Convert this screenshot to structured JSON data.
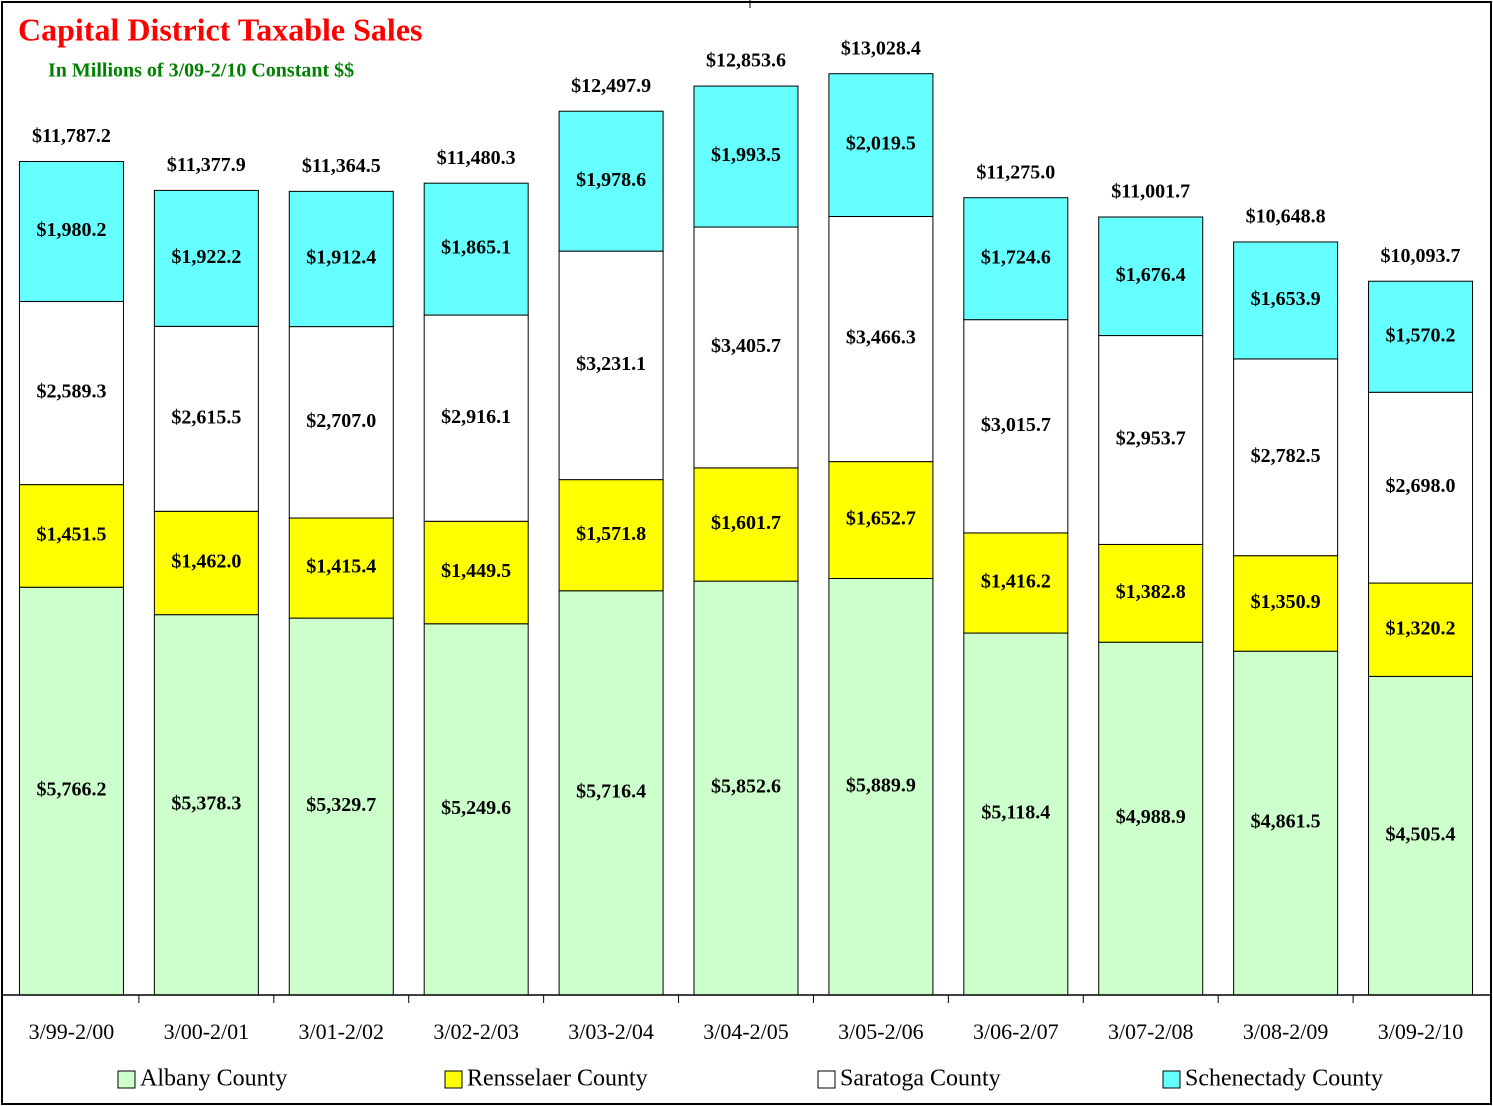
{
  "chart_data": {
    "type": "stacked_bar",
    "title": "Capital District Taxable Sales",
    "subtitle": "In Millions of 3/09-2/10 Constant $$",
    "categories": [
      "3/99-2/00",
      "3/00-2/01",
      "3/01-2/02",
      "3/02-2/03",
      "3/03-2/04",
      "3/04-2/05",
      "3/05-2/06",
      "3/06-2/07",
      "3/07-2/08",
      "3/08-2/09",
      "3/09-2/10"
    ],
    "ylim": [
      0,
      14000
    ],
    "series": [
      {
        "name": "Albany County",
        "color": "#ccffcc",
        "values": [
          5766.2,
          5378.3,
          5329.7,
          5249.6,
          5716.4,
          5852.6,
          5889.9,
          5118.4,
          4988.9,
          4861.5,
          4505.4
        ],
        "value_labels": [
          "$5,766.2",
          "$5,378.3",
          "$5,329.7",
          "$5,249.6",
          "$5,716.4",
          "$5,852.6",
          "$5,889.9",
          "$5,118.4",
          "$4,988.9",
          "$4,861.5",
          "$4,505.4"
        ]
      },
      {
        "name": "Rensselaer County",
        "color": "#ffff00",
        "values": [
          1451.5,
          1462.0,
          1415.4,
          1449.5,
          1571.8,
          1601.7,
          1652.7,
          1416.2,
          1382.8,
          1350.9,
          1320.2
        ],
        "value_labels": [
          "$1,451.5",
          "$1,462.0",
          "$1,415.4",
          "$1,449.5",
          "$1,571.8",
          "$1,601.7",
          "$1,652.7",
          "$1,416.2",
          "$1,382.8",
          "$1,350.9",
          "$1,320.2"
        ]
      },
      {
        "name": "Saratoga County",
        "color": "#ffffff",
        "values": [
          2589.3,
          2615.5,
          2707.0,
          2916.1,
          3231.1,
          3405.7,
          3466.3,
          3015.7,
          2953.7,
          2782.5,
          2698.0
        ],
        "value_labels": [
          "$2,589.3",
          "$2,615.5",
          "$2,707.0",
          "$2,916.1",
          "$3,231.1",
          "$3,405.7",
          "$3,466.3",
          "$3,015.7",
          "$2,953.7",
          "$2,782.5",
          "$2,698.0"
        ]
      },
      {
        "name": "Schenectady County",
        "color": "#66ffff",
        "values": [
          1980.2,
          1922.2,
          1912.4,
          1865.1,
          1978.6,
          1993.5,
          2019.5,
          1724.6,
          1676.4,
          1653.9,
          1570.2
        ],
        "value_labels": [
          "$1,980.2",
          "$1,922.2",
          "$1,912.4",
          "$1,865.1",
          "$1,978.6",
          "$1,993.5",
          "$2,019.5",
          "$1,724.6",
          "$1,676.4",
          "$1,653.9",
          "$1,570.2"
        ]
      }
    ],
    "totals": [
      11787.2,
      11377.9,
      11364.5,
      11480.3,
      12497.9,
      12853.6,
      13028.4,
      11275.0,
      11001.7,
      10648.8,
      10093.7
    ],
    "total_labels": [
      "$11,787.2",
      "$11,377.9",
      "$11,364.5",
      "$11,480.3",
      "$12,497.9",
      "$12,853.6",
      "$13,028.4",
      "$11,275.0",
      "$11,001.7",
      "$10,648.8",
      "$10,093.7"
    ]
  }
}
